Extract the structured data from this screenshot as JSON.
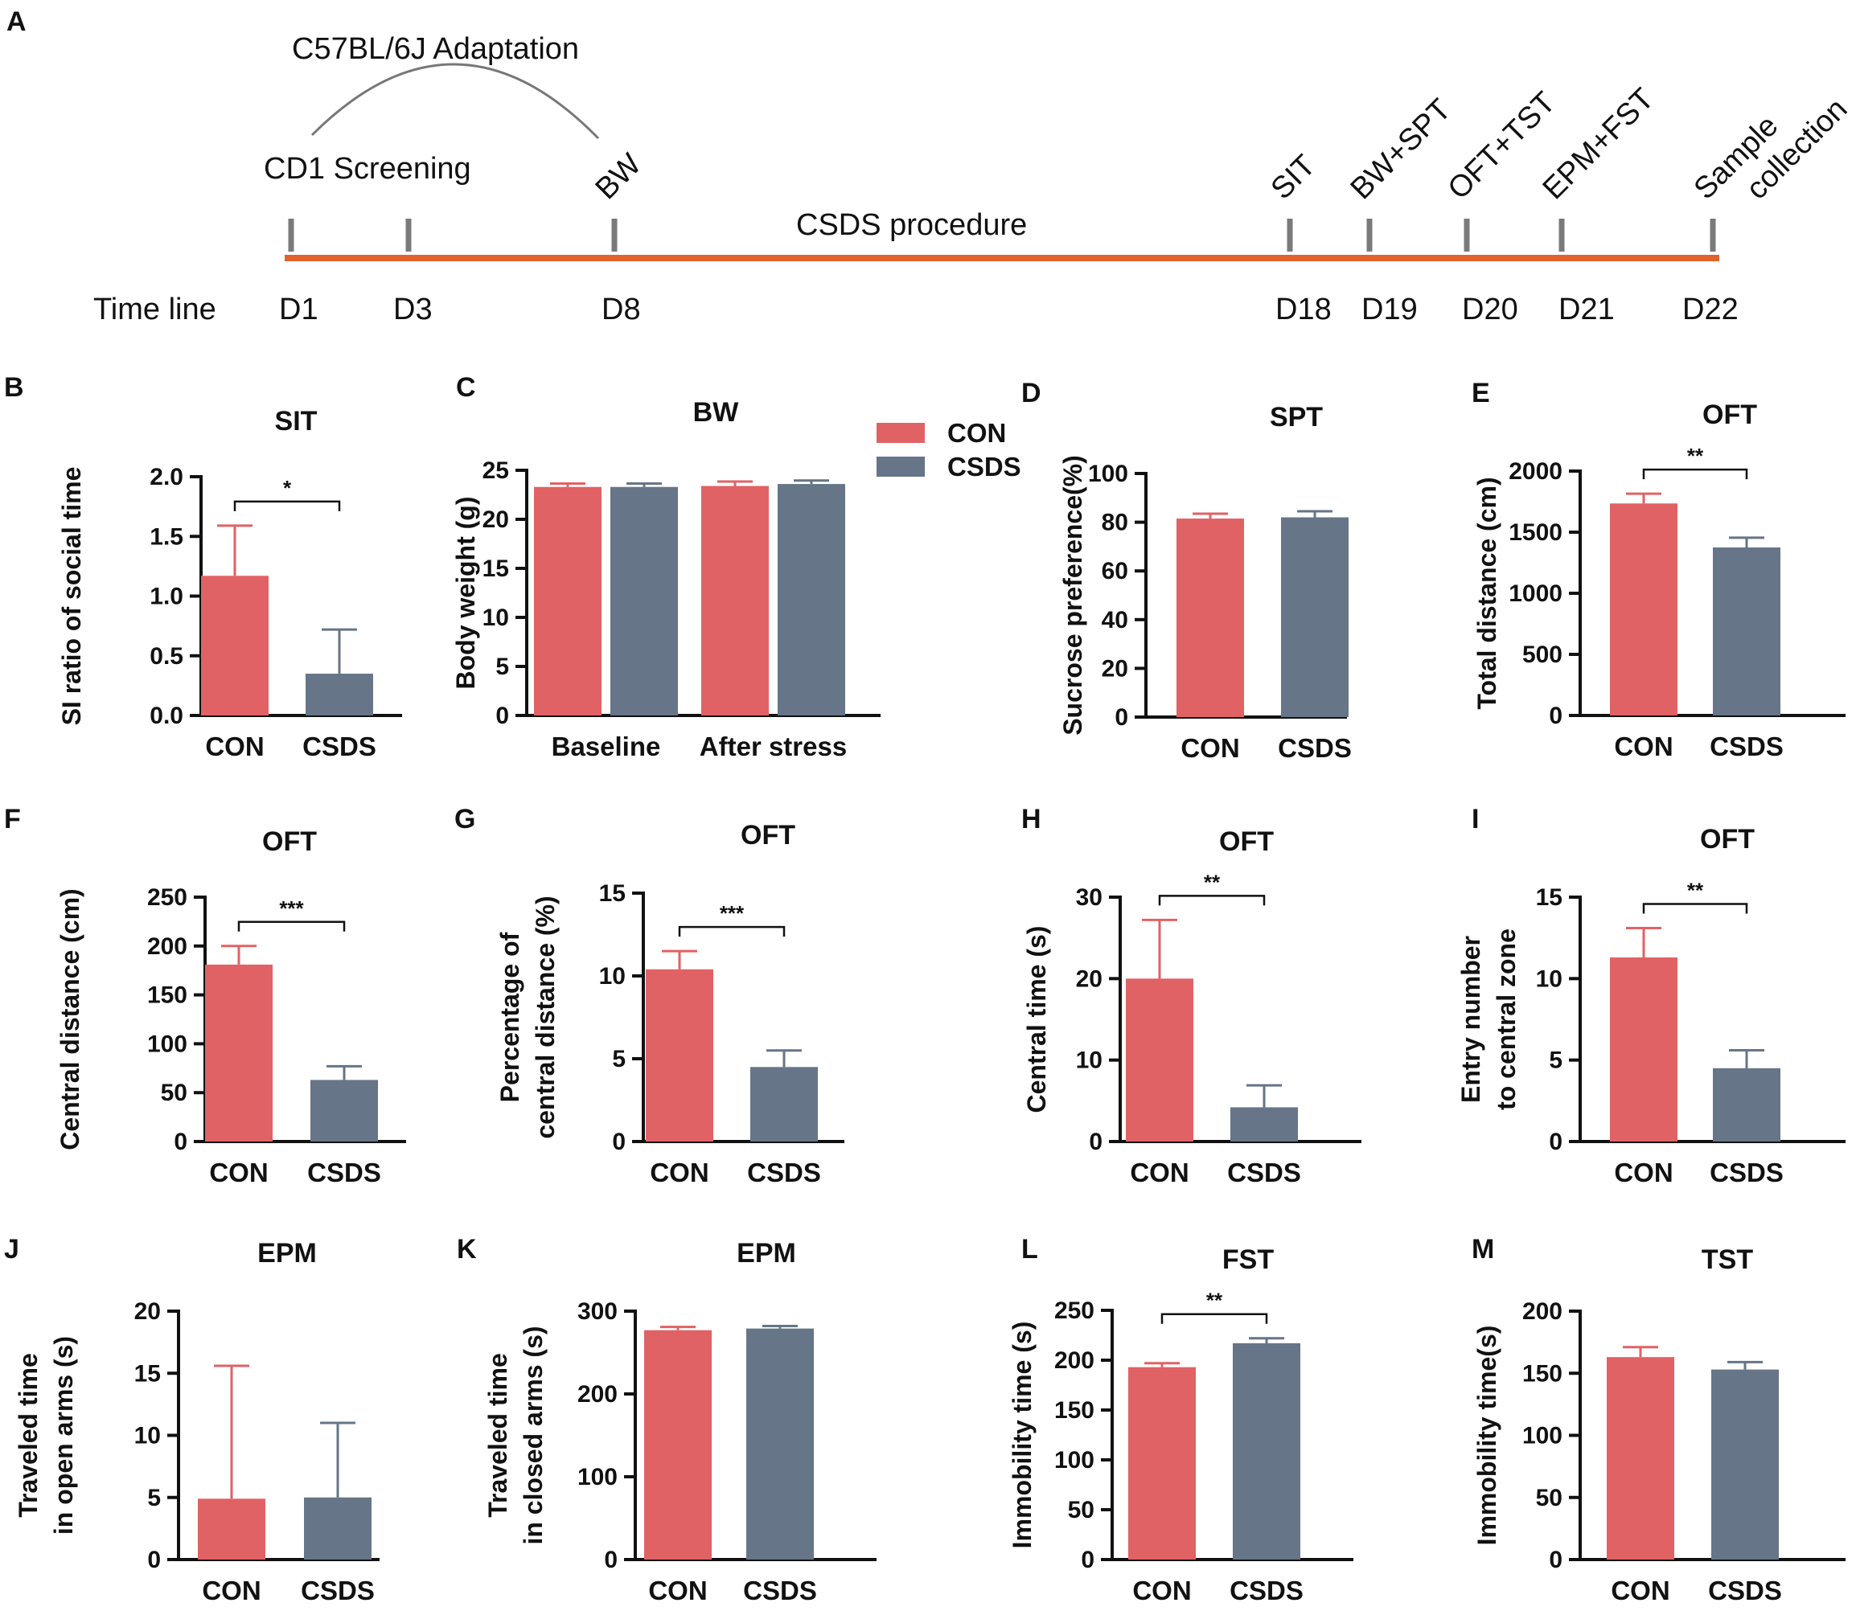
{
  "timeline": {
    "panel_label": "A",
    "adaptation_label": "C57BL/6J Adaptation",
    "screening_label": "CD1 Screening",
    "procedure_label": "CSDS procedure",
    "axis_label": "Time line",
    "line_color": "#E2622B",
    "tick_color": "#7A7A7A",
    "events": [
      {
        "day": "D1",
        "label": ""
      },
      {
        "day": "D3",
        "label": ""
      },
      {
        "day": "D8",
        "label": "BW"
      },
      {
        "day": "D18",
        "label": "SIT"
      },
      {
        "day": "D19",
        "label": "BW+SPT"
      },
      {
        "day": "D20",
        "label": "OFT+TST"
      },
      {
        "day": "D21",
        "label": "EPM+FST"
      },
      {
        "day": "D22",
        "label": "Sample|collection"
      }
    ]
  },
  "colors": {
    "CON": "#E06264",
    "CSDS": "#667587",
    "axis": "#111111"
  },
  "legend": {
    "items": [
      "CON",
      "CSDS"
    ]
  },
  "chart_data": [
    {
      "id": "B",
      "type": "bar",
      "title": "SIT",
      "ylabel": [
        "SI ratio of social time"
      ],
      "categories": [
        "CON",
        "CSDS"
      ],
      "values": [
        1.17,
        0.35
      ],
      "errors": [
        0.42,
        0.37
      ],
      "ylim": [
        0,
        2.0
      ],
      "yticks": [
        "0.0",
        "0.5",
        "1.0",
        "1.5",
        "2.0"
      ],
      "significance": "*"
    },
    {
      "id": "C",
      "type": "bar",
      "title": "BW",
      "ylabel": [
        "Body weight (g)"
      ],
      "categories": [
        "Baseline",
        "After stress"
      ],
      "series": [
        {
          "name": "CON",
          "values": [
            23.3,
            23.4
          ],
          "errors": [
            0.35,
            0.45
          ]
        },
        {
          "name": "CSDS",
          "values": [
            23.3,
            23.6
          ],
          "errors": [
            0.35,
            0.35
          ]
        }
      ],
      "ylim": [
        0,
        25
      ],
      "yticks": [
        "0",
        "5",
        "10",
        "15",
        "20",
        "25"
      ],
      "significance": ""
    },
    {
      "id": "D",
      "type": "bar",
      "title": "SPT",
      "ylabel": [
        "Sucrose preference(%)"
      ],
      "categories": [
        "CON",
        "CSDS"
      ],
      "values": [
        81.5,
        82.0
      ],
      "errors": [
        2.0,
        2.5
      ],
      "ylim": [
        0,
        100
      ],
      "yticks": [
        "0",
        "20",
        "40",
        "60",
        "80",
        "100"
      ],
      "significance": ""
    },
    {
      "id": "E",
      "type": "bar",
      "title": "OFT",
      "ylabel": [
        "Total distance (cm)"
      ],
      "categories": [
        "CON",
        "CSDS"
      ],
      "values": [
        1735,
        1375
      ],
      "errors": [
        80,
        80
      ],
      "ylim": [
        0,
        2000
      ],
      "yticks": [
        "0",
        "500",
        "1000",
        "1500",
        "2000"
      ],
      "significance": "**"
    },
    {
      "id": "F",
      "type": "bar",
      "title": "OFT",
      "ylabel": [
        "Central distance (cm)"
      ],
      "categories": [
        "CON",
        "CSDS"
      ],
      "values": [
        181,
        63
      ],
      "errors": [
        19,
        14
      ],
      "ylim": [
        0,
        250
      ],
      "yticks": [
        "0",
        "50",
        "100",
        "150",
        "200",
        "250"
      ],
      "significance": "***"
    },
    {
      "id": "G",
      "type": "bar",
      "title": "OFT",
      "ylabel": [
        "Percentage of",
        "central distance (%)"
      ],
      "categories": [
        "CON",
        "CSDS"
      ],
      "values": [
        10.4,
        4.5
      ],
      "errors": [
        1.1,
        1.0
      ],
      "ylim": [
        0,
        15
      ],
      "yticks": [
        "0",
        "5",
        "10",
        "15"
      ],
      "significance": "***"
    },
    {
      "id": "H",
      "type": "bar",
      "title": "OFT",
      "ylabel": [
        "Central time (s)"
      ],
      "categories": [
        "CON",
        "CSDS"
      ],
      "values": [
        20.0,
        4.2
      ],
      "errors": [
        7.2,
        2.7
      ],
      "ylim": [
        0,
        30
      ],
      "yticks": [
        "0",
        "10",
        "20",
        "30"
      ],
      "significance": "**"
    },
    {
      "id": "I",
      "type": "bar",
      "title": "OFT",
      "ylabel": [
        "Entry number",
        "to central zone"
      ],
      "categories": [
        "CON",
        "CSDS"
      ],
      "values": [
        11.3,
        4.5
      ],
      "errors": [
        1.8,
        1.1
      ],
      "ylim": [
        0,
        15
      ],
      "yticks": [
        "0",
        "5",
        "10",
        "15"
      ],
      "significance": "**"
    },
    {
      "id": "J",
      "type": "bar",
      "title": "EPM",
      "ylabel": [
        "Traveled time",
        "in open arms (s)"
      ],
      "categories": [
        "CON",
        "CSDS"
      ],
      "values": [
        4.9,
        5.0
      ],
      "errors": [
        10.7,
        6.0
      ],
      "ylim": [
        0,
        20
      ],
      "yticks": [
        "0",
        "5",
        "10",
        "15",
        "20"
      ],
      "significance": ""
    },
    {
      "id": "K",
      "type": "bar",
      "title": "EPM",
      "ylabel": [
        "Traveled time",
        "in closed arms (s)"
      ],
      "categories": [
        "CON",
        "CSDS"
      ],
      "values": [
        277,
        279
      ],
      "errors": [
        4,
        3
      ],
      "ylim": [
        0,
        300
      ],
      "yticks": [
        "0",
        "100",
        "200",
        "300"
      ],
      "significance": ""
    },
    {
      "id": "L",
      "type": "bar",
      "title": "FST",
      "ylabel": [
        "Immobility time (s)"
      ],
      "categories": [
        "CON",
        "CSDS"
      ],
      "values": [
        193,
        217
      ],
      "errors": [
        4,
        5
      ],
      "ylim": [
        0,
        250
      ],
      "yticks": [
        "0",
        "50",
        "100",
        "150",
        "200",
        "250"
      ],
      "significance": "**"
    },
    {
      "id": "M",
      "type": "bar",
      "title": "TST",
      "ylabel": [
        "Immobility time(s)"
      ],
      "categories": [
        "CON",
        "CSDS"
      ],
      "values": [
        163,
        153
      ],
      "errors": [
        8,
        6
      ],
      "ylim": [
        0,
        200
      ],
      "yticks": [
        "0",
        "50",
        "100",
        "150",
        "200"
      ],
      "significance": ""
    }
  ]
}
